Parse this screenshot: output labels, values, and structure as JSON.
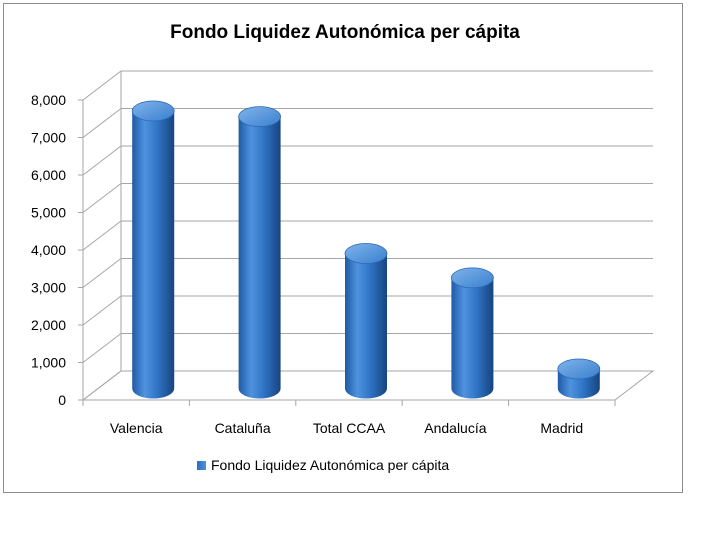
{
  "chart_data": {
    "type": "bar",
    "title": "Fondo Liquidez Autonómica per cápita",
    "categories": [
      "Valencia",
      "Cataluña",
      "Total CCAA",
      "Andalucía",
      "Madrid"
    ],
    "series": [
      {
        "name": "Fondo Liquidez Autonómica per cápita",
        "values": [
          7400,
          7250,
          3600,
          2950,
          520
        ]
      }
    ],
    "y_ticks": [
      "0",
      "1,000",
      "2,000",
      "3,000",
      "4,000",
      "5,000",
      "6,000",
      "7,000",
      "8,000"
    ],
    "ylim": [
      0,
      8000
    ],
    "grid": true,
    "legend_position": "bottom",
    "colors": {
      "bar": "#2e75c9",
      "bar_dark": "#1f4f8e",
      "bar_light": "#6fa8e6",
      "grid": "#a6a6a6"
    }
  }
}
